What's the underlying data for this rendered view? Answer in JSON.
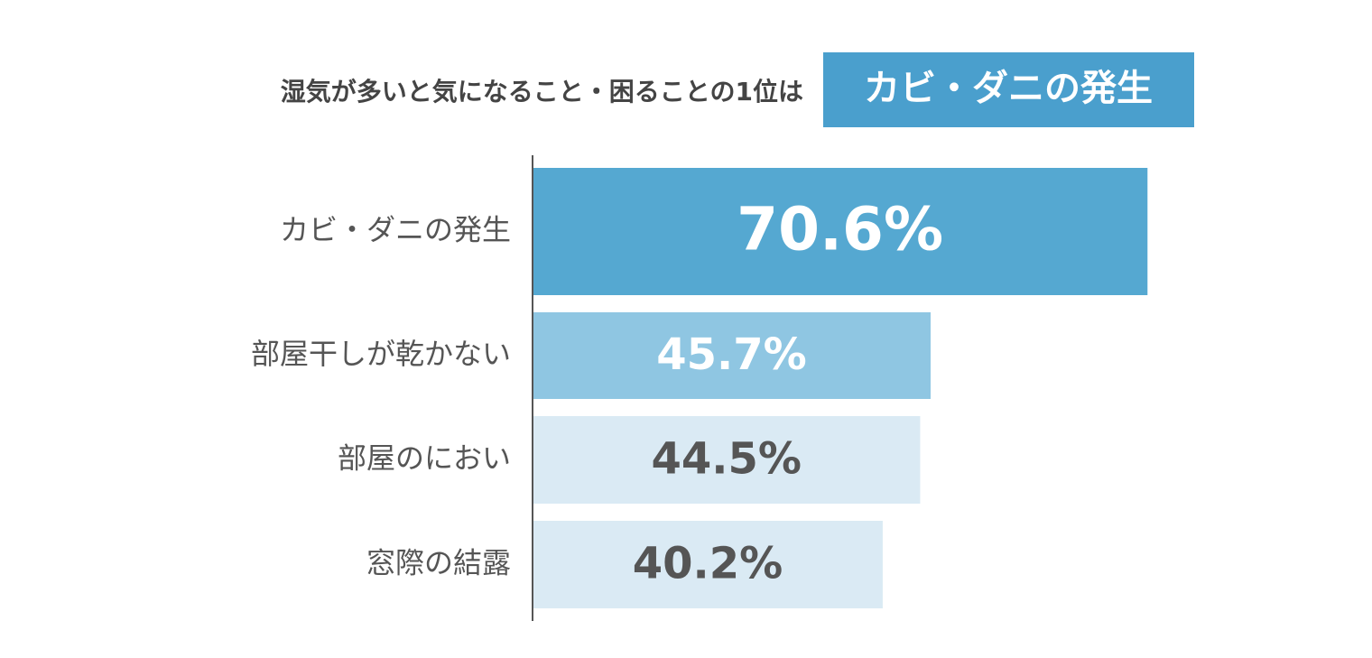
{
  "chart_data": {
    "type": "bar",
    "orientation": "horizontal",
    "title": "湿気が多いと気になること・困ることの1位は",
    "title_highlight": "カビ・ダニの発生",
    "highlight_color": "#4a9fcd",
    "categories": [
      "カビ・ダニの発生",
      "部屋干しが乾かない",
      "部屋のにおい",
      "窓際の結露"
    ],
    "values": [
      70.6,
      45.7,
      44.5,
      40.2
    ],
    "value_labels": [
      "70.6%",
      "45.7%",
      "44.5%",
      "40.2%"
    ],
    "colors": [
      "#55a8d1",
      "#8fc6e2",
      "#daeaf4",
      "#daeaf4"
    ],
    "label_colors": [
      "#ffffff",
      "#ffffff",
      "#555555",
      "#555555"
    ]
  }
}
